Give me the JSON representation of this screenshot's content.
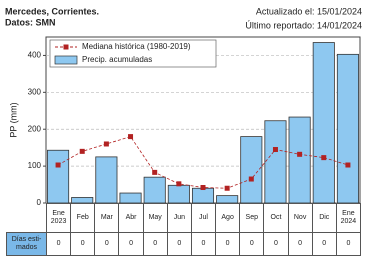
{
  "chart_data": {
    "type": "bar",
    "title": "Mercedes, Corrientes.",
    "subtitle": "Datos: SMN",
    "annotations": [
      "Actualizado el: 15/01/2024",
      "Último reportado: 14/01/2024"
    ],
    "y_label": "PP (mm)",
    "categories": [
      "Ene 2023",
      "Feb",
      "Mar",
      "Abr",
      "May",
      "Jun",
      "Jul",
      "Ago",
      "Sep",
      "Oct",
      "Nov",
      "Dic",
      "Ene 2024"
    ],
    "series": [
      {
        "name": "Mediana histórica (1980-2019)",
        "type": "line",
        "color": "#b22222",
        "values": [
          103,
          140,
          160,
          180,
          83,
          52,
          42,
          40,
          65,
          145,
          132,
          123,
          103
        ]
      },
      {
        "name": "Precip. acumuladas",
        "type": "bar",
        "color": "#8ec8f0",
        "values": [
          143,
          15,
          125,
          27,
          70,
          48,
          40,
          20,
          180,
          223,
          233,
          435,
          403
        ]
      }
    ],
    "ylim": [
      0,
      450
    ],
    "yticks": [
      0,
      100,
      200,
      300,
      400
    ],
    "grid": true,
    "legend": "upper left",
    "estimated_days": {
      "label": "Días esti-mados",
      "values": [
        0,
        0,
        0,
        0,
        0,
        0,
        0,
        0,
        0,
        0,
        0,
        0,
        0
      ]
    }
  }
}
